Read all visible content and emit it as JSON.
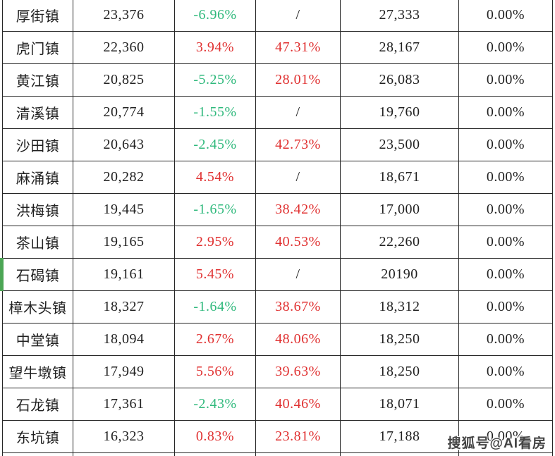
{
  "colors": {
    "border": "#262626",
    "text": "#212121",
    "negative_green": "#2fb97c",
    "positive_red": "#e03131",
    "row_marker_green": "#4ca655",
    "watermark_gray": "#434343"
  },
  "watermark": {
    "text": "搜狐号@AI看房"
  },
  "table": {
    "marker_row": "石碣镇",
    "rows": [
      {
        "cells": [
          {
            "text": "厚街镇"
          },
          {
            "text": "23,376"
          },
          {
            "text": "-6.96%",
            "color": "green"
          },
          {
            "text": "/"
          },
          {
            "text": "27,333"
          },
          {
            "text": "0.00%"
          }
        ]
      },
      {
        "cells": [
          {
            "text": "虎门镇"
          },
          {
            "text": "22,360"
          },
          {
            "text": "3.94%",
            "color": "red"
          },
          {
            "text": "47.31%",
            "color": "red"
          },
          {
            "text": "28,167"
          },
          {
            "text": "0.00%"
          }
        ]
      },
      {
        "cells": [
          {
            "text": "黄江镇"
          },
          {
            "text": "20,825"
          },
          {
            "text": "-5.25%",
            "color": "green"
          },
          {
            "text": "28.01%",
            "color": "red"
          },
          {
            "text": "26,083"
          },
          {
            "text": "0.00%"
          }
        ]
      },
      {
        "cells": [
          {
            "text": "清溪镇"
          },
          {
            "text": "20,774"
          },
          {
            "text": "-1.55%",
            "color": "green"
          },
          {
            "text": "/"
          },
          {
            "text": "19,760"
          },
          {
            "text": "0.00%"
          }
        ]
      },
      {
        "cells": [
          {
            "text": "沙田镇"
          },
          {
            "text": "20,643"
          },
          {
            "text": "-2.45%",
            "color": "green"
          },
          {
            "text": "42.73%",
            "color": "red"
          },
          {
            "text": "23,500"
          },
          {
            "text": "0.00%"
          }
        ]
      },
      {
        "cells": [
          {
            "text": "麻涌镇"
          },
          {
            "text": "20,282"
          },
          {
            "text": "4.54%",
            "color": "red"
          },
          {
            "text": "/"
          },
          {
            "text": "18,671"
          },
          {
            "text": "0.00%"
          }
        ]
      },
      {
        "cells": [
          {
            "text": "洪梅镇"
          },
          {
            "text": "19,445"
          },
          {
            "text": "-1.65%",
            "color": "green"
          },
          {
            "text": "38.42%",
            "color": "red"
          },
          {
            "text": "17,000"
          },
          {
            "text": "0.00%"
          }
        ]
      },
      {
        "cells": [
          {
            "text": "茶山镇"
          },
          {
            "text": "19,165"
          },
          {
            "text": "2.95%",
            "color": "red"
          },
          {
            "text": "40.53%",
            "color": "red"
          },
          {
            "text": "22,260"
          },
          {
            "text": "0.00%"
          }
        ]
      },
      {
        "cells": [
          {
            "text": "石碣镇"
          },
          {
            "text": "19,161"
          },
          {
            "text": "5.45%",
            "color": "red"
          },
          {
            "text": "/"
          },
          {
            "text": "20190"
          },
          {
            "text": "0.00%"
          }
        ],
        "marker": true
      },
      {
        "cells": [
          {
            "text": "樟木头镇"
          },
          {
            "text": "18,327"
          },
          {
            "text": "-1.64%",
            "color": "green"
          },
          {
            "text": "38.67%",
            "color": "red"
          },
          {
            "text": "18,312"
          },
          {
            "text": "0.00%"
          }
        ]
      },
      {
        "cells": [
          {
            "text": "中堂镇"
          },
          {
            "text": "18,094"
          },
          {
            "text": "2.67%",
            "color": "red"
          },
          {
            "text": "48.06%",
            "color": "red"
          },
          {
            "text": "18,250"
          },
          {
            "text": "0.00%"
          }
        ]
      },
      {
        "cells": [
          {
            "text": "望牛墩镇"
          },
          {
            "text": "17,949"
          },
          {
            "text": "5.56%",
            "color": "red"
          },
          {
            "text": "39.63%",
            "color": "red"
          },
          {
            "text": "18,250"
          },
          {
            "text": "0.00%"
          }
        ]
      },
      {
        "cells": [
          {
            "text": "石龙镇"
          },
          {
            "text": "17,361"
          },
          {
            "text": "-2.43%",
            "color": "green"
          },
          {
            "text": "40.46%",
            "color": "red"
          },
          {
            "text": "18,071"
          },
          {
            "text": "0.00%"
          }
        ]
      },
      {
        "cells": [
          {
            "text": "东坑镇"
          },
          {
            "text": "16,323"
          },
          {
            "text": "0.83%",
            "color": "red"
          },
          {
            "text": "23.81%",
            "color": "red"
          },
          {
            "text": "17,188"
          },
          {
            "text": "0.00%"
          }
        ]
      }
    ]
  },
  "chart_data": {
    "type": "table",
    "rows": [
      [
        "厚街镇",
        "23,376",
        "-6.96%",
        "/",
        "27,333",
        "0.00%"
      ],
      [
        "虎门镇",
        "22,360",
        "3.94%",
        "47.31%",
        "28,167",
        "0.00%"
      ],
      [
        "黄江镇",
        "20,825",
        "-5.25%",
        "28.01%",
        "26,083",
        "0.00%"
      ],
      [
        "清溪镇",
        "20,774",
        "-1.55%",
        "/",
        "19,760",
        "0.00%"
      ],
      [
        "沙田镇",
        "20,643",
        "-2.45%",
        "42.73%",
        "23,500",
        "0.00%"
      ],
      [
        "麻涌镇",
        "20,282",
        "4.54%",
        "/",
        "18,671",
        "0.00%"
      ],
      [
        "洪梅镇",
        "19,445",
        "-1.65%",
        "38.42%",
        "17,000",
        "0.00%"
      ],
      [
        "茶山镇",
        "19,165",
        "2.95%",
        "40.53%",
        "22,260",
        "0.00%"
      ],
      [
        "石碣镇",
        "19,161",
        "5.45%",
        "/",
        "20190",
        "0.00%"
      ],
      [
        "樟木头镇",
        "18,327",
        "-1.64%",
        "38.67%",
        "18,312",
        "0.00%"
      ],
      [
        "中堂镇",
        "18,094",
        "2.67%",
        "48.06%",
        "18,250",
        "0.00%"
      ],
      [
        "望牛墩镇",
        "17,949",
        "5.56%",
        "39.63%",
        "18,250",
        "0.00%"
      ],
      [
        "石龙镇",
        "17,361",
        "-2.43%",
        "40.46%",
        "18,071",
        "0.00%"
      ],
      [
        "东坑镇",
        "16,323",
        "0.83%",
        "23.81%",
        "17,188",
        "0.00%"
      ]
    ],
    "notes": "No header row visible; column 3 negative values shown green, positive red; column 4 values red or '/'; all column 6 values are 0.00%"
  }
}
